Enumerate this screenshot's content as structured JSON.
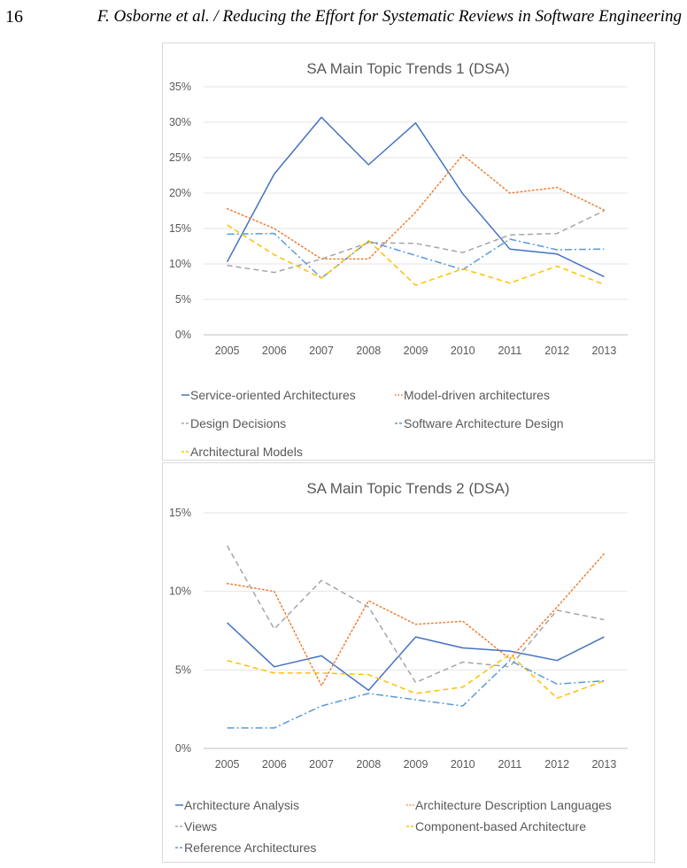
{
  "page": {
    "number": "16",
    "running_title": "F. Osborne et al. / Reducing the Effort for Systematic Reviews in Software Engineering"
  },
  "chart_data": [
    {
      "type": "line",
      "title": "SA  Main Topic Trends 1 (DSA)",
      "xlabel": "",
      "ylabel": "",
      "categories": [
        "2005",
        "2006",
        "2007",
        "2008",
        "2009",
        "2010",
        "2011",
        "2012",
        "2013"
      ],
      "y_ticks": [
        "0%",
        "5%",
        "10%",
        "15%",
        "20%",
        "25%",
        "30%",
        "35%"
      ],
      "ylim": [
        0,
        35
      ],
      "grid": true,
      "legend_position": "bottom",
      "series": [
        {
          "name": "Service-oriented Architectures",
          "color": "#4472c4",
          "dash": "solid",
          "values": [
            10.3,
            22.7,
            30.7,
            24.0,
            29.9,
            19.9,
            12.1,
            11.4,
            8.2
          ]
        },
        {
          "name": "Model-driven architectures",
          "color": "#ed7d31",
          "dash": "dot",
          "values": [
            17.8,
            15.0,
            10.7,
            10.7,
            17.3,
            25.4,
            20.0,
            20.8,
            17.6
          ]
        },
        {
          "name": "Design Decisions",
          "color": "#a5a5a5",
          "dash": "dash",
          "values": [
            9.8,
            8.8,
            10.7,
            13.0,
            12.9,
            11.6,
            14.1,
            14.3,
            17.5
          ]
        },
        {
          "name": "Software Architecture Design",
          "color": "#5b9bd5",
          "dash": "dashdot",
          "values": [
            14.2,
            14.3,
            8.0,
            13.2,
            11.2,
            9.2,
            13.5,
            12.0,
            12.1
          ]
        },
        {
          "name": "Architectural Models",
          "color": "#ffc000",
          "dash": "dash",
          "values": [
            15.5,
            11.3,
            8.0,
            13.3,
            7.0,
            9.3,
            7.3,
            9.7,
            7.1
          ]
        }
      ]
    },
    {
      "type": "line",
      "title": "SA  Main Topic Trends 2 (DSA)",
      "xlabel": "",
      "ylabel": "",
      "categories": [
        "2005",
        "2006",
        "2007",
        "2008",
        "2009",
        "2010",
        "2011",
        "2012",
        "2013"
      ],
      "y_ticks": [
        "0%",
        "5%",
        "10%",
        "15%"
      ],
      "ylim": [
        0,
        15
      ],
      "grid": true,
      "legend_position": "bottom",
      "series": [
        {
          "name": "Architecture Analysis",
          "color": "#4472c4",
          "dash": "solid",
          "values": [
            8.0,
            5.2,
            5.9,
            3.7,
            7.1,
            6.4,
            6.2,
            5.6,
            7.1
          ]
        },
        {
          "name": "Architecture Description Languages",
          "color": "#ed7d31",
          "dash": "dot",
          "values": [
            10.5,
            10.0,
            4.0,
            9.4,
            7.9,
            8.1,
            5.7,
            9.0,
            12.4
          ]
        },
        {
          "name": "Views",
          "color": "#a5a5a5",
          "dash": "dash",
          "values": [
            12.9,
            7.6,
            10.7,
            9.0,
            4.2,
            5.5,
            5.2,
            8.8,
            8.2
          ]
        },
        {
          "name": "Component-based Architecture",
          "color": "#ffc000",
          "dash": "dash",
          "values": [
            5.6,
            4.8,
            4.8,
            4.7,
            3.5,
            3.9,
            6.0,
            3.2,
            4.3
          ]
        },
        {
          "name": "Reference Architectures",
          "color": "#5b9bd5",
          "dash": "dashdot",
          "values": [
            1.3,
            1.3,
            2.7,
            3.5,
            3.1,
            2.7,
            5.6,
            4.1,
            4.3
          ]
        }
      ]
    }
  ]
}
